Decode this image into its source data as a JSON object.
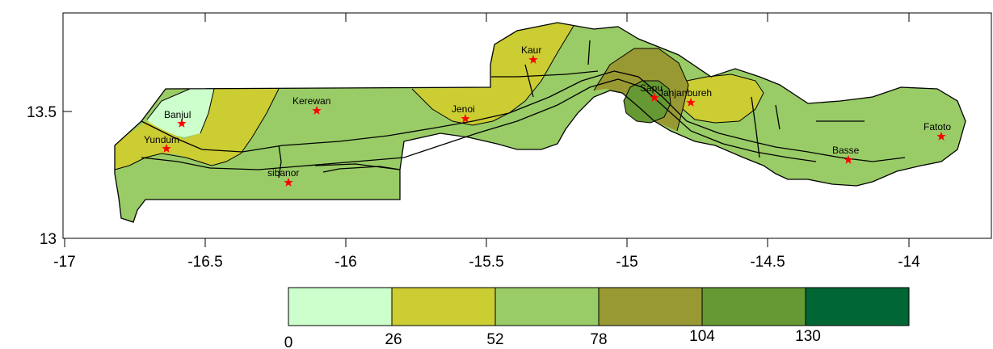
{
  "map": {
    "x_ticks": [
      "-17",
      "-16.5",
      "-16",
      "-15.5",
      "-15",
      "-14.5",
      "-14"
    ],
    "y_ticks": [
      "13",
      "13.5"
    ],
    "stations": [
      {
        "name": "Banjul"
      },
      {
        "name": "Yundum"
      },
      {
        "name": "Kerewan"
      },
      {
        "name": "sibanor"
      },
      {
        "name": "Jenoi"
      },
      {
        "name": "Kaur"
      },
      {
        "name": "Sapu"
      },
      {
        "name": "Janjanbureh"
      },
      {
        "name": "Basse"
      },
      {
        "name": "Fatoto"
      }
    ],
    "station_marker": "red-star-icon"
  },
  "legend": {
    "bins": [
      {
        "color": "#ccffcc"
      },
      {
        "color": "#cccc33"
      },
      {
        "color": "#99cc66"
      },
      {
        "color": "#999933"
      },
      {
        "color": "#669933"
      },
      {
        "color": "#006633"
      }
    ],
    "labels": [
      "0",
      "26",
      "52",
      "78",
      "104",
      "130"
    ]
  },
  "colors": {
    "light_green": "#ccffcc",
    "olive_yellow": "#cccc33",
    "medium_green": "#99cc66",
    "dark_olive": "#999933",
    "green": "#669933",
    "dark_green": "#006633",
    "marker": "#ff0000"
  }
}
